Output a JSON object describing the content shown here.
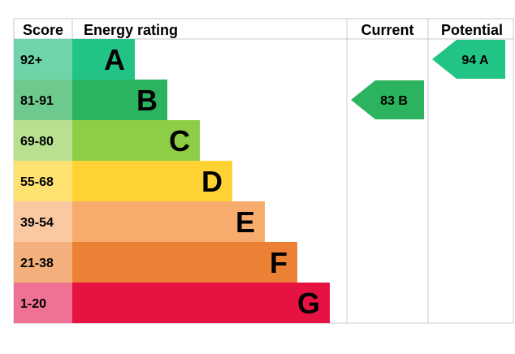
{
  "headers": {
    "score": "Score",
    "energy_rating": "Energy rating",
    "current": "Current",
    "potential": "Potential"
  },
  "chart_data": {
    "type": "bar",
    "title": "",
    "categories": [
      "A",
      "B",
      "C",
      "D",
      "E",
      "F",
      "G"
    ],
    "score_ranges": [
      "92+",
      "81-91",
      "69-80",
      "55-68",
      "39-54",
      "21-38",
      "1-20"
    ],
    "band_colors": [
      "#22c486",
      "#2bb35f",
      "#8dce46",
      "#ffd234",
      "#f7ab6c",
      "#ec8135",
      "#e61241"
    ],
    "score_cell_colors": [
      "#6fd4a8",
      "#6ec98e",
      "#b8e08f",
      "#ffe171",
      "#fac9a2",
      "#f3b07c",
      "#ef7193"
    ],
    "current": {
      "score": 83,
      "band": "B",
      "label": "83 B",
      "color": "#2bb35f"
    },
    "potential": {
      "score": 94,
      "band": "A",
      "label": "94 A",
      "color": "#22c486"
    }
  }
}
